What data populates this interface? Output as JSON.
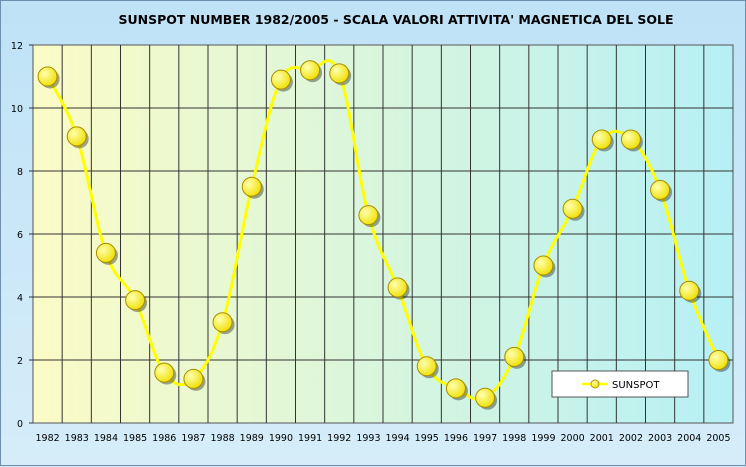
{
  "chart_data": {
    "type": "line",
    "title": "SUNSPOT NUMBER 1982/2005 - SCALA VALORI ATTIVITA' MAGNETICA DEL SOLE",
    "xlabel": "",
    "ylabel": "",
    "categories": [
      "1982",
      "1983",
      "1984",
      "1985",
      "1986",
      "1987",
      "1988",
      "1989",
      "1990",
      "1991",
      "1992",
      "1993",
      "1994",
      "1995",
      "1996",
      "1997",
      "1998",
      "1999",
      "2000",
      "2001",
      "2002",
      "2003",
      "2004",
      "2005"
    ],
    "series": [
      {
        "name": "SUNSPOT",
        "values": [
          11.0,
          9.1,
          5.4,
          3.9,
          1.6,
          1.4,
          3.2,
          7.5,
          10.9,
          11.2,
          11.1,
          6.6,
          4.3,
          1.8,
          1.1,
          0.8,
          2.1,
          5.0,
          6.8,
          9.0,
          9.0,
          7.4,
          4.2,
          2.0
        ],
        "line_color": "#ffff00",
        "marker_color": "#f2f200"
      }
    ],
    "ylim": [
      0,
      12
    ],
    "yticks": [
      "0",
      "2",
      "4",
      "6",
      "8",
      "10",
      "12"
    ],
    "grid": true,
    "legend_position": "bottom-right",
    "plot_gradient": [
      "#fbfbc6",
      "#b6f0f5"
    ]
  }
}
